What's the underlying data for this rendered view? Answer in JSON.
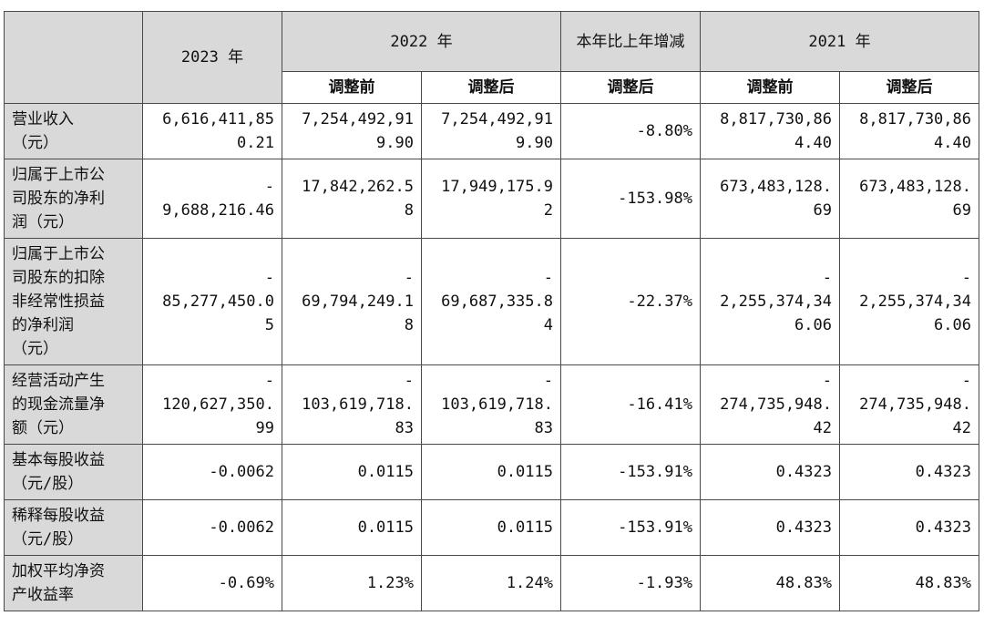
{
  "header": {
    "y2023": "2023 年",
    "y2022": "2022 年",
    "change": "本年比上年增减",
    "y2021": "2021 年",
    "before": "调整前",
    "after": "调整后"
  },
  "rows": [
    {
      "label": "营业收入\n（元）",
      "v2023": "6,616,411,85\n0.21",
      "v2022_before": "7,254,492,91\n9.90",
      "v2022_after": "7,254,492,91\n9.90",
      "change": "-8.80%",
      "v2021_before": "8,817,730,86\n4.40",
      "v2021_after": "8,817,730,86\n4.40"
    },
    {
      "label": "归属于上市公\n司股东的净利\n润（元）",
      "v2023": "-\n9,688,216.46",
      "v2022_before": "17,842,262.5\n8",
      "v2022_after": "17,949,175.9\n2",
      "change": "-153.98%",
      "v2021_before": "673,483,128.\n69",
      "v2021_after": "673,483,128.\n69"
    },
    {
      "label": "归属于上市公\n司股东的扣除\n非经常性损益\n的净利润\n（元）",
      "v2023": "-\n85,277,450.0\n5",
      "v2022_before": "-\n69,794,249.1\n8",
      "v2022_after": "-\n69,687,335.8\n4",
      "change": "-22.37%",
      "v2021_before": "-\n2,255,374,34\n6.06",
      "v2021_after": "-\n2,255,374,34\n6.06"
    },
    {
      "label": "经营活动产生\n的现金流量净\n额（元）",
      "v2023": "-\n120,627,350.\n99",
      "v2022_before": "-\n103,619,718.\n83",
      "v2022_after": "-\n103,619,718.\n83",
      "change": "-16.41%",
      "v2021_before": "-\n274,735,948.\n42",
      "v2021_after": "-\n274,735,948.\n42"
    },
    {
      "label": "基本每股收益\n（元/股）",
      "v2023": "-0.0062",
      "v2022_before": "0.0115",
      "v2022_after": "0.0115",
      "change": "-153.91%",
      "v2021_before": "0.4323",
      "v2021_after": "0.4323"
    },
    {
      "label": "稀释每股收益\n（元/股）",
      "v2023": "-0.0062",
      "v2022_before": "0.0115",
      "v2022_after": "0.0115",
      "change": "-153.91%",
      "v2021_before": "0.4323",
      "v2021_after": "0.4323"
    },
    {
      "label": "加权平均净资\n产收益率",
      "v2023": "-0.69%",
      "v2022_before": "1.23%",
      "v2022_after": "1.24%",
      "change": "-1.93%",
      "v2021_before": "48.83%",
      "v2021_after": "48.83%"
    }
  ]
}
